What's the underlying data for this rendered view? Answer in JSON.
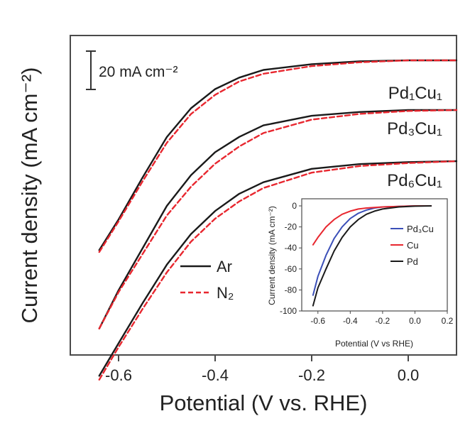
{
  "chart_data": [
    {
      "type": "line",
      "xlabel": "Potential (V vs. RHE)",
      "ylabel": "Current density (mA cm⁻²)",
      "xlim": [
        -0.7,
        0.1
      ],
      "x_ticks": [
        "-0.6",
        "-0.4",
        "-0.2",
        "0.0"
      ],
      "scale_bar": {
        "label": "20 mA cm⁻²",
        "value": 20
      },
      "legend": {
        "position": "center-left",
        "entries": [
          "Ar",
          "N₂"
        ]
      },
      "groups": [
        {
          "label": "Pd₁Cu₁",
          "series": [
            {
              "name": "Ar",
              "color": "#1a1a1a",
              "style": "solid",
              "x": [
                -0.64,
                -0.6,
                -0.55,
                -0.5,
                -0.45,
                -0.4,
                -0.35,
                -0.3,
                -0.2,
                -0.1,
                0.0,
                0.1
              ],
              "y": [
                -99,
                -83,
                -61,
                -40,
                -25,
                -15,
                -9,
                -5,
                -2,
                -0.5,
                0,
                0
              ]
            },
            {
              "name": "N₂",
              "color": "#e8272f",
              "style": "dashed",
              "x": [
                -0.64,
                -0.6,
                -0.55,
                -0.5,
                -0.45,
                -0.4,
                -0.35,
                -0.3,
                -0.2,
                -0.1,
                0.0,
                0.1
              ],
              "y": [
                -100,
                -84,
                -63,
                -43,
                -28,
                -18,
                -11,
                -7,
                -3,
                -1,
                0,
                0
              ]
            }
          ]
        },
        {
          "label": "Pd₃Cu₁",
          "series": [
            {
              "name": "Ar",
              "color": "#1a1a1a",
              "style": "solid",
              "x": [
                -0.64,
                -0.6,
                -0.55,
                -0.5,
                -0.45,
                -0.4,
                -0.35,
                -0.3,
                -0.2,
                -0.1,
                0.0,
                0.1
              ],
              "y": [
                -114,
                -94,
                -72,
                -50,
                -34,
                -22,
                -14,
                -8,
                -3,
                -1,
                0,
                0
              ]
            },
            {
              "name": "N₂",
              "color": "#e8272f",
              "style": "dashed",
              "x": [
                -0.64,
                -0.6,
                -0.55,
                -0.5,
                -0.45,
                -0.4,
                -0.35,
                -0.3,
                -0.2,
                -0.1,
                0.0,
                0.1
              ],
              "y": [
                -114,
                -95,
                -75,
                -55,
                -40,
                -28,
                -19,
                -12,
                -5,
                -2,
                -0.5,
                0
              ]
            }
          ]
        },
        {
          "label": "Pd₆Cu₁",
          "series": [
            {
              "name": "Ar",
              "color": "#1a1a1a",
              "style": "solid",
              "x": [
                -0.64,
                -0.6,
                -0.55,
                -0.5,
                -0.45,
                -0.4,
                -0.35,
                -0.3,
                -0.2,
                -0.1,
                0.0,
                0.1
              ],
              "y": [
                -112,
                -95,
                -74,
                -54,
                -38,
                -26,
                -17,
                -11,
                -4,
                -1.5,
                -0.5,
                0
              ]
            },
            {
              "name": "N₂",
              "color": "#e8272f",
              "style": "dashed",
              "x": [
                -0.64,
                -0.6,
                -0.55,
                -0.5,
                -0.45,
                -0.4,
                -0.35,
                -0.3,
                -0.2,
                -0.1,
                0.0,
                0.1
              ],
              "y": [
                -114,
                -97,
                -77,
                -58,
                -42,
                -30,
                -21,
                -14,
                -6,
                -2.5,
                -1,
                0
              ]
            }
          ]
        }
      ]
    },
    {
      "type": "line",
      "xlabel": "Potential (V vs RHE)",
      "ylabel": "Current density (mA cm⁻²)",
      "xlim": [
        -0.7,
        0.2
      ],
      "ylim": [
        -100,
        0
      ],
      "x_ticks": [
        "-0.6",
        "-0.4",
        "-0.2",
        "0.0",
        "0.2"
      ],
      "y_ticks": [
        "0",
        "-20",
        "-40",
        "-60",
        "-80",
        "-100"
      ],
      "legend": {
        "position": "right",
        "entries": [
          "Pd₃Cu",
          "Cu",
          "Pd"
        ]
      },
      "series": [
        {
          "name": "Pd₃Cu",
          "color": "#3b4fb8",
          "style": "solid",
          "x": [
            -0.63,
            -0.6,
            -0.55,
            -0.5,
            -0.45,
            -0.4,
            -0.35,
            -0.3,
            -0.25,
            -0.2,
            -0.1,
            0.0,
            0.1
          ],
          "y": [
            -85,
            -67,
            -47,
            -31,
            -20,
            -12,
            -7,
            -4,
            -2,
            -1,
            -0.5,
            0,
            0
          ]
        },
        {
          "name": "Cu",
          "color": "#e8272f",
          "style": "solid",
          "x": [
            -0.63,
            -0.6,
            -0.55,
            -0.5,
            -0.45,
            -0.4,
            -0.35,
            -0.3,
            -0.2,
            -0.1,
            0.0,
            0.1
          ],
          "y": [
            -37,
            -30,
            -20,
            -13,
            -8,
            -5,
            -3,
            -2,
            -1,
            -0.5,
            0,
            0
          ]
        },
        {
          "name": "Pd",
          "color": "#1a1a1a",
          "style": "solid",
          "x": [
            -0.63,
            -0.6,
            -0.55,
            -0.5,
            -0.45,
            -0.4,
            -0.35,
            -0.3,
            -0.25,
            -0.2,
            -0.1,
            0.0,
            0.1
          ],
          "y": [
            -95,
            -78,
            -60,
            -43,
            -30,
            -20,
            -13,
            -8,
            -5,
            -3,
            -1,
            -0.3,
            0
          ]
        }
      ]
    }
  ]
}
